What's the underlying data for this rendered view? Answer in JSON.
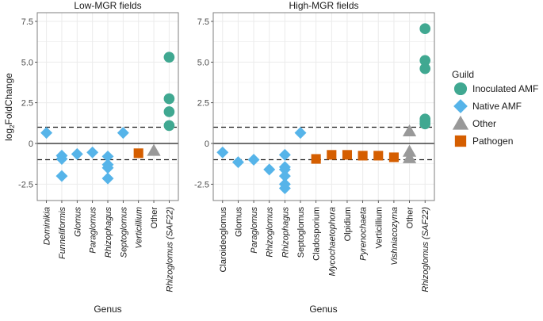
{
  "chart_data": {
    "type": "scatter",
    "ylabel_main": "log",
    "ylabel_sub": "2",
    "ylabel_rest": "FoldChange",
    "xlabel": "Genus",
    "ylim": [
      -3.5,
      8.0
    ],
    "yticks": [
      -2.5,
      0,
      2.5,
      5.0,
      7.5
    ],
    "ytick_labels": [
      "-2.5",
      "0",
      "2.5",
      "5.0",
      "7.5"
    ],
    "hlines": {
      "solid": 0,
      "dashed": [
        1,
        -1
      ]
    },
    "grid": true,
    "legend": {
      "title": "Guild",
      "position": "right",
      "entries": [
        {
          "name": "Inoculated AMF",
          "shape": "circle",
          "color": "#40a891"
        },
        {
          "name": "Native AMF",
          "shape": "diamond",
          "color": "#56b4e9"
        },
        {
          "name": "Other",
          "shape": "triangle",
          "color": "#999999"
        },
        {
          "name": "Pathogen",
          "shape": "square",
          "color": "#d55e00"
        }
      ]
    },
    "panels": [
      {
        "title": "Low-MGR fields",
        "categories": [
          "Dominikia",
          "Funneliformis",
          "Glomus",
          "Paraglomus",
          "Rhizophagus",
          "Septoglomus",
          "Verticillium",
          "Other",
          "Rhizoglomus (SAF22)"
        ],
        "italic": [
          true,
          true,
          true,
          true,
          true,
          true,
          true,
          false,
          true
        ],
        "points": [
          {
            "genus": "Dominikia",
            "guild": "Native AMF",
            "value": 0.65
          },
          {
            "genus": "Funneliformis",
            "guild": "Native AMF",
            "value": -0.75
          },
          {
            "genus": "Funneliformis",
            "guild": "Native AMF",
            "value": -0.95
          },
          {
            "genus": "Funneliformis",
            "guild": "Native AMF",
            "value": -2.0
          },
          {
            "genus": "Glomus",
            "guild": "Native AMF",
            "value": -0.65
          },
          {
            "genus": "Paraglomus",
            "guild": "Native AMF",
            "value": -0.55
          },
          {
            "genus": "Rhizophagus",
            "guild": "Native AMF",
            "value": -0.8
          },
          {
            "genus": "Rhizophagus",
            "guild": "Native AMF",
            "value": -1.3
          },
          {
            "genus": "Rhizophagus",
            "guild": "Native AMF",
            "value": -1.5
          },
          {
            "genus": "Rhizophagus",
            "guild": "Native AMF",
            "value": -2.15
          },
          {
            "genus": "Septoglomus",
            "guild": "Native AMF",
            "value": 0.65
          },
          {
            "genus": "Verticillium",
            "guild": "Pathogen",
            "value": -0.6
          },
          {
            "genus": "Other",
            "guild": "Other",
            "value": -0.45
          },
          {
            "genus": "Rhizoglomus (SAF22)",
            "guild": "Inoculated AMF",
            "value": 5.3
          },
          {
            "genus": "Rhizoglomus (SAF22)",
            "guild": "Inoculated AMF",
            "value": 2.75
          },
          {
            "genus": "Rhizoglomus (SAF22)",
            "guild": "Inoculated AMF",
            "value": 1.95
          },
          {
            "genus": "Rhizoglomus (SAF22)",
            "guild": "Inoculated AMF",
            "value": 1.1
          }
        ]
      },
      {
        "title": "High-MGR fields",
        "categories": [
          "Claroideoglomus",
          "Glomus",
          "Paraglomus",
          "Rhizoglomus",
          "Rhizophagus",
          "Septoglomus",
          "Cladosporium",
          "Mycochaetophora",
          "Olpidium",
          "Pyrenochaeta",
          "Verticillium",
          "Vishniacozyma",
          "Other",
          "Rhizoglomus (SAF22)"
        ],
        "italic": [
          false,
          false,
          true,
          true,
          true,
          false,
          false,
          true,
          false,
          true,
          false,
          true,
          false,
          true
        ],
        "points": [
          {
            "genus": "Claroideoglomus",
            "guild": "Native AMF",
            "value": -0.55
          },
          {
            "genus": "Glomus",
            "guild": "Native AMF",
            "value": -1.15
          },
          {
            "genus": "Paraglomus",
            "guild": "Native AMF",
            "value": -1.0
          },
          {
            "genus": "Rhizoglomus",
            "guild": "Native AMF",
            "value": -1.6
          },
          {
            "genus": "Rhizophagus",
            "guild": "Native AMF",
            "value": -0.7
          },
          {
            "genus": "Rhizophagus",
            "guild": "Native AMF",
            "value": -1.45
          },
          {
            "genus": "Rhizophagus",
            "guild": "Native AMF",
            "value": -1.6
          },
          {
            "genus": "Rhizophagus",
            "guild": "Native AMF",
            "value": -2.0
          },
          {
            "genus": "Rhizophagus",
            "guild": "Native AMF",
            "value": -2.5
          },
          {
            "genus": "Rhizophagus",
            "guild": "Native AMF",
            "value": -2.75
          },
          {
            "genus": "Septoglomus",
            "guild": "Native AMF",
            "value": 0.65
          },
          {
            "genus": "Cladosporium",
            "guild": "Pathogen",
            "value": -0.95
          },
          {
            "genus": "Mycochaetophora",
            "guild": "Pathogen",
            "value": -0.7
          },
          {
            "genus": "Olpidium",
            "guild": "Pathogen",
            "value": -0.7
          },
          {
            "genus": "Pyrenochaeta",
            "guild": "Pathogen",
            "value": -0.75
          },
          {
            "genus": "Verticillium",
            "guild": "Pathogen",
            "value": -0.75
          },
          {
            "genus": "Vishniacozyma",
            "guild": "Pathogen",
            "value": -0.85
          },
          {
            "genus": "Other",
            "guild": "Other",
            "value": 0.75
          },
          {
            "genus": "Other",
            "guild": "Other",
            "value": -0.5
          },
          {
            "genus": "Other",
            "guild": "Other",
            "value": -0.9
          },
          {
            "genus": "Rhizoglomus (SAF22)",
            "guild": "Inoculated AMF",
            "value": 7.05
          },
          {
            "genus": "Rhizoglomus (SAF22)",
            "guild": "Inoculated AMF",
            "value": 5.1
          },
          {
            "genus": "Rhizoglomus (SAF22)",
            "guild": "Inoculated AMF",
            "value": 4.6
          },
          {
            "genus": "Rhizoglomus (SAF22)",
            "guild": "Inoculated AMF",
            "value": 1.5
          },
          {
            "genus": "Rhizoglomus (SAF22)",
            "guild": "Inoculated AMF",
            "value": 1.35
          },
          {
            "genus": "Rhizoglomus (SAF22)",
            "guild": "Inoculated AMF",
            "value": 1.2
          }
        ]
      }
    ]
  }
}
